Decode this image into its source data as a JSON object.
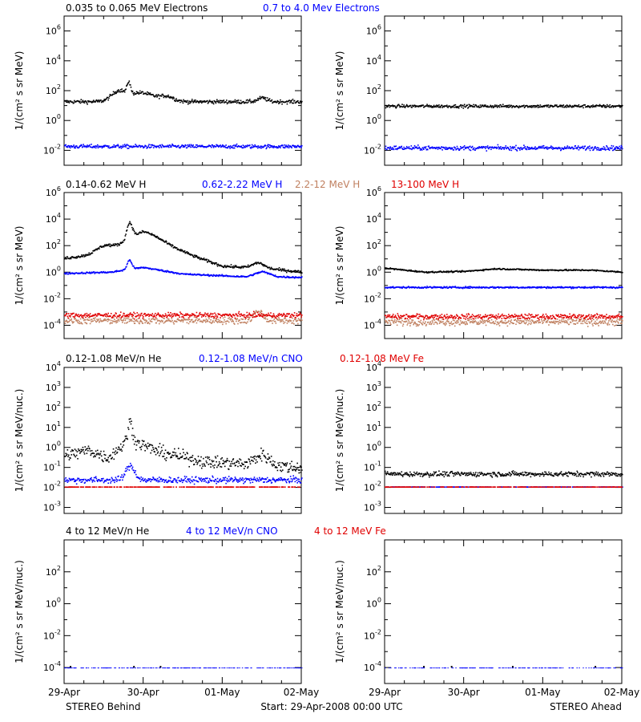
{
  "colors": {
    "black": "#000000",
    "blue": "#0000ff",
    "tan": "#c08060",
    "red": "#e00000"
  },
  "footer": {
    "left": "STEREO Behind",
    "center": "Start: 29-Apr-2008 00:00 UTC",
    "right": "STEREO Ahead"
  },
  "x_tick_labels": [
    "29-Apr",
    "30-Apr",
    "01-May",
    "02-May"
  ],
  "chart_data": [
    {
      "type": "scatter",
      "row": 0,
      "legend": [
        {
          "label": "0.035 to 0.065 MeV Electrons",
          "color": "#000000"
        },
        {
          "label": "0.7 to 4.0 Mev Electrons",
          "color": "#0000ff"
        }
      ],
      "ylabel": "1/(cm² s sr MeV)",
      "yscale": "log",
      "ylim_exp": [
        -3,
        7
      ],
      "yticks_exp": [
        -2,
        0,
        2,
        4,
        6
      ],
      "xlim_days": [
        0,
        3
      ],
      "panels": [
        {
          "name": "STEREO Behind",
          "series": [
            {
              "name": "0.035 to 0.065 MeV Electrons",
              "color": "#000000",
              "baseline_exp": 1.3,
              "scatter": 0.12,
              "features": [
                {
                  "x": 0.65,
                  "h": 0.35,
                  "w": 0.12
                },
                {
                  "x": 0.7,
                  "h": 0.25,
                  "w": 0.1
                },
                {
                  "x": 0.81,
                  "h": 0.8,
                  "w": 0.03
                },
                {
                  "x": 0.95,
                  "h": 0.6,
                  "w": 0.25
                },
                {
                  "x": 1.3,
                  "h": 0.3,
                  "w": 0.12
                },
                {
                  "x": 2.5,
                  "h": 0.25,
                  "w": 0.08
                }
              ],
              "sample_points": [
                [
                  0,
                  1.3
                ],
                [
                  0.8,
                  2.8
                ],
                [
                  1.0,
                  2.0
                ],
                [
                  1.5,
                  1.5
                ],
                [
                  2.5,
                  1.6
                ],
                [
                  3.0,
                  1.3
                ]
              ]
            },
            {
              "name": "0.7 to 4.0 Mev Electrons",
              "color": "#0000ff",
              "baseline_exp": -1.7,
              "scatter": 0.12,
              "sample_points": [
                [
                  0,
                  -1.7
                ],
                [
                  1.5,
                  -1.6
                ],
                [
                  3.0,
                  -1.6
                ]
              ]
            }
          ]
        },
        {
          "name": "STEREO Ahead",
          "series": [
            {
              "name": "0.035 to 0.065 MeV Electrons",
              "color": "#000000",
              "baseline_exp": 1.0,
              "scatter": 0.1,
              "sample_points": [
                [
                  0,
                  1.0
                ],
                [
                  1.5,
                  1.05
                ],
                [
                  3.0,
                  1.0
                ]
              ]
            },
            {
              "name": "0.7 to 4.0 Mev Electrons",
              "color": "#0000ff",
              "baseline_exp": -1.8,
              "scatter": 0.14,
              "sample_points": [
                [
                  0,
                  -1.8
                ],
                [
                  1.5,
                  -1.8
                ],
                [
                  3.0,
                  -1.8
                ]
              ]
            }
          ]
        }
      ]
    },
    {
      "type": "scatter",
      "row": 1,
      "legend": [
        {
          "label": "0.14-0.62 MeV H",
          "color": "#000000"
        },
        {
          "label": "0.62-2.22 MeV H",
          "color": "#0000ff"
        },
        {
          "label": "2.2-12 MeV H",
          "color": "#c08060"
        },
        {
          "label": "13-100 MeV H",
          "color": "#e00000"
        }
      ],
      "ylabel": "1/(cm² s sr MeV)",
      "yscale": "log",
      "ylim_exp": [
        -5,
        6
      ],
      "yticks_exp": [
        -4,
        -2,
        0,
        2,
        4,
        6
      ],
      "xlim_days": [
        0,
        3
      ],
      "panels": [
        {
          "name": "STEREO Behind",
          "series": [
            {
              "name": "0.14-0.62 MeV H",
              "color": "#000000",
              "baseline_exp": 1.1,
              "scatter": 0.1,
              "features": [
                {
                  "x": 0.5,
                  "h": 0.5,
                  "w": 0.15
                },
                {
                  "x": 0.82,
                  "h": 1.2,
                  "w": 0.05
                },
                {
                  "x": 1.0,
                  "h": 0.9,
                  "w": 0.35
                },
                {
                  "x": 2.45,
                  "h": 0.4,
                  "w": 0.1
                }
              ],
              "trend": [
                [
                  0,
                  1.1
                ],
                [
                  0.6,
                  1.5
                ],
                [
                  1.0,
                  2.2
                ],
                [
                  1.5,
                  1.5
                ],
                [
                  2.0,
                  0.5
                ],
                [
                  2.6,
                  0.3
                ],
                [
                  3.0,
                  0.05
                ]
              ],
              "sample_points": [
                [
                  0,
                  1.1
                ],
                [
                  0.8,
                  2.8
                ],
                [
                  1.5,
                  1.5
                ],
                [
                  2.45,
                  0.8
                ],
                [
                  3.0,
                  0.05
                ]
              ]
            },
            {
              "name": "0.62-2.22 MeV H",
              "color": "#0000ff",
              "baseline_exp": -0.05,
              "scatter": 0.06,
              "trend": [
                [
                  0,
                  -0.05
                ],
                [
                  0.6,
                  0.05
                ],
                [
                  0.8,
                  0.25
                ],
                [
                  1.0,
                  0.4
                ],
                [
                  1.5,
                  -0.1
                ],
                [
                  2.3,
                  -0.3
                ],
                [
                  2.5,
                  0.1
                ],
                [
                  2.7,
                  -0.3
                ],
                [
                  3.0,
                  -0.35
                ]
              ],
              "features": [
                {
                  "x": 0.82,
                  "h": 0.7,
                  "w": 0.04
                }
              ],
              "sample_points": [
                [
                  0,
                  -0.05
                ],
                [
                  0.82,
                  0.6
                ],
                [
                  2.5,
                  0.1
                ],
                [
                  3.0,
                  -0.35
                ]
              ]
            },
            {
              "name": "2.2-12 MeV H",
              "color": "#c08060",
              "baseline_exp": -3.6,
              "scatter": 0.25,
              "features": [
                {
                  "x": 2.45,
                  "h": 0.7,
                  "w": 0.08
                }
              ],
              "sample_points": [
                [
                  0,
                  -3.6
                ],
                [
                  2.45,
                  -2.9
                ],
                [
                  3.0,
                  -3.6
                ]
              ]
            },
            {
              "name": "13-100 MeV H",
              "color": "#e00000",
              "baseline_exp": -3.2,
              "scatter": 0.18,
              "sample_points": [
                [
                  0,
                  -3.2
                ],
                [
                  1.5,
                  -3.2
                ],
                [
                  3.0,
                  -3.2
                ]
              ]
            }
          ]
        },
        {
          "name": "STEREO Ahead",
          "series": [
            {
              "name": "0.14-0.62 MeV H",
              "color": "#000000",
              "baseline_exp": 0.15,
              "scatter": 0.05,
              "trend": [
                [
                  0,
                  0.35
                ],
                [
                  0.5,
                  0.05
                ],
                [
                  1.0,
                  0.1
                ],
                [
                  1.4,
                  0.3
                ],
                [
                  2.0,
                  0.2
                ],
                [
                  2.6,
                  0.2
                ],
                [
                  3.0,
                  0.05
                ]
              ],
              "sample_points": [
                [
                  0,
                  0.35
                ],
                [
                  1.4,
                  0.3
                ],
                [
                  3.0,
                  0.05
                ]
              ]
            },
            {
              "name": "0.62-2.22 MeV H",
              "color": "#0000ff",
              "baseline_exp": -1.1,
              "scatter": 0.06,
              "sample_points": [
                [
                  0,
                  -1.1
                ],
                [
                  1.5,
                  -1.1
                ],
                [
                  3.0,
                  -1.1
                ]
              ]
            },
            {
              "name": "2.2-12 MeV H",
              "color": "#c08060",
              "baseline_exp": -3.7,
              "scatter": 0.25,
              "sample_points": [
                [
                  0,
                  -3.7
                ],
                [
                  1.5,
                  -3.7
                ],
                [
                  3.0,
                  -3.7
                ]
              ]
            },
            {
              "name": "13-100 MeV H",
              "color": "#e00000",
              "baseline_exp": -3.3,
              "scatter": 0.18,
              "sample_points": [
                [
                  0,
                  -3.3
                ],
                [
                  1.5,
                  -3.3
                ],
                [
                  3.0,
                  -3.3
                ]
              ]
            }
          ]
        }
      ]
    },
    {
      "type": "scatter",
      "row": 2,
      "legend": [
        {
          "label": "0.12-1.08 MeV/n He",
          "color": "#000000"
        },
        {
          "label": "0.12-1.08 MeV/n CNO",
          "color": "#0000ff"
        },
        {
          "label": "0.12-1.08 MeV Fe",
          "color": "#e00000"
        }
      ],
      "ylabel": "1/(cm² s sr MeV/nuc.)",
      "yscale": "log",
      "ylim_exp": [
        -3.3,
        4
      ],
      "yticks_exp": [
        -3,
        -2,
        -1,
        0,
        1,
        2,
        3,
        4
      ],
      "xlim_days": [
        0,
        3
      ],
      "panels": [
        {
          "name": "STEREO Behind",
          "series": [
            {
              "name": "0.12-1.08 MeV/n He",
              "color": "#000000",
              "baseline_exp": -0.5,
              "scatter": 0.3,
              "trend": [
                [
                  0,
                  -0.4
                ],
                [
                  0.3,
                  -0.1
                ],
                [
                  0.55,
                  -0.5
                ],
                [
                  0.8,
                  0.4
                ],
                [
                  0.9,
                  0.3
                ],
                [
                  1.2,
                  -0.2
                ],
                [
                  1.8,
                  -0.7
                ],
                [
                  2.3,
                  -0.8
                ],
                [
                  2.5,
                  -0.3
                ],
                [
                  2.7,
                  -0.9
                ],
                [
                  3.0,
                  -1.0
                ]
              ],
              "features": [
                {
                  "x": 0.83,
                  "h": 0.9,
                  "w": 0.04
                }
              ],
              "sample_points": [
                [
                  0,
                  -0.4
                ],
                [
                  0.83,
                  1.3
                ],
                [
                  2.5,
                  -0.3
                ],
                [
                  3.0,
                  -1.0
                ]
              ]
            },
            {
              "name": "0.12-1.08 MeV/n CNO",
              "color": "#0000ff",
              "baseline_exp": -1.6,
              "scatter": 0.15,
              "features": [
                {
                  "x": 0.83,
                  "h": 0.7,
                  "w": 0.08
                }
              ],
              "sample_points": [
                [
                  0,
                  -1.6
                ],
                [
                  0.83,
                  -0.9
                ],
                [
                  3.0,
                  -1.6
                ]
              ]
            },
            {
              "name": "0.12-1.08 MeV Fe",
              "color": "#e00000",
              "baseline_exp": -1.95,
              "scatter": 0.02,
              "sample_points": [
                [
                  0,
                  -1.95
                ],
                [
                  3.0,
                  -1.95
                ]
              ]
            }
          ]
        },
        {
          "name": "STEREO Ahead",
          "series": [
            {
              "name": "0.12-1.08 MeV/n He",
              "color": "#000000",
              "baseline_exp": -1.3,
              "scatter": 0.12,
              "sample_points": [
                [
                  0,
                  -1.3
                ],
                [
                  1.5,
                  -1.0
                ],
                [
                  3.0,
                  -1.3
                ]
              ]
            },
            {
              "name": "0.12-1.08 MeV/n CNO",
              "color": "#0000ff",
              "baseline_exp": -1.95,
              "scatter": 0.02,
              "sample_points": [
                [
                  0,
                  -1.95
                ],
                [
                  3.0,
                  -1.95
                ]
              ]
            },
            {
              "name": "0.12-1.08 MeV Fe",
              "color": "#e00000",
              "baseline_exp": -1.95,
              "scatter": 0.02,
              "sample_points": [
                [
                  0,
                  -1.95
                ],
                [
                  3.0,
                  -1.95
                ]
              ]
            }
          ]
        }
      ]
    },
    {
      "type": "scatter",
      "row": 3,
      "legend": [
        {
          "label": "4 to 12 MeV/n He",
          "color": "#000000"
        },
        {
          "label": "4 to 12 MeV/n CNO",
          "color": "#0000ff"
        },
        {
          "label": "4 to 12 MeV Fe",
          "color": "#e00000"
        }
      ],
      "ylabel": "1/(cm² s sr MeV/nuc.)",
      "yscale": "log",
      "ylim_exp": [
        -5,
        4
      ],
      "yticks_exp": [
        -4,
        -2,
        0,
        2
      ],
      "xlim_days": [
        0,
        3
      ],
      "panels": [
        {
          "name": "STEREO Behind",
          "series": [
            {
              "name": "4 to 12 MeV/n He",
              "color": "#000000",
              "baseline_exp": -4.0,
              "scatter": 0.02,
              "sample_points": [
                [
                  0.8,
                  -3.9
                ],
                [
                  0.9,
                  -3.85
                ],
                [
                  1.7,
                  -3.9
                ],
                [
                  2.3,
                  -3.9
                ],
                [
                  2.6,
                  -3.9
                ]
              ]
            },
            {
              "name": "4 to 12 MeV/n CNO",
              "color": "#0000ff",
              "baseline_exp": -4.0,
              "scatter": 0.02,
              "sample_points": [
                [
                  0,
                  -4.0
                ],
                [
                  3.0,
                  -4.0
                ]
              ]
            }
          ]
        },
        {
          "name": "STEREO Ahead",
          "series": [
            {
              "name": "4 to 12 MeV/n He",
              "color": "#000000",
              "baseline_exp": -4.0,
              "scatter": 0.02,
              "sample_points": [
                [
                  0.75,
                  -3.9
                ],
                [
                  2.15,
                  -3.9
                ],
                [
                  2.4,
                  -3.9
                ]
              ]
            },
            {
              "name": "4 to 12 MeV/n CNO",
              "color": "#0000ff",
              "baseline_exp": -4.0,
              "scatter": 0.02,
              "sample_points": [
                [
                  0,
                  -4.0
                ],
                [
                  3.0,
                  -4.0
                ]
              ]
            }
          ]
        }
      ]
    }
  ]
}
